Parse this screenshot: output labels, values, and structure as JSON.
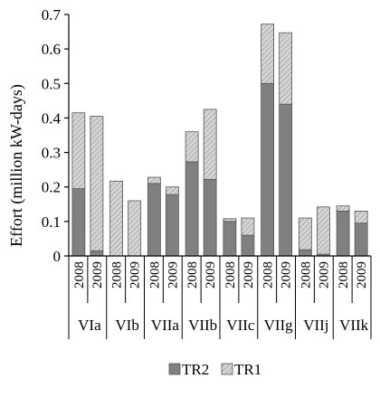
{
  "chart_data": {
    "type": "bar",
    "stacked": true,
    "ylabel": "Effort (million kW-days)",
    "ylim": [
      0,
      0.7
    ],
    "yticks": [
      0,
      0.1,
      0.2,
      0.3,
      0.4,
      0.5,
      0.6,
      0.7
    ],
    "ytick_labels": [
      "0",
      "0.1",
      "0.2",
      "0.3",
      "0.4",
      "0.5",
      "0.6",
      "0.7"
    ],
    "groups": [
      {
        "name": "VIa",
        "years": [
          "2008",
          "2009"
        ]
      },
      {
        "name": "VIb",
        "years": [
          "2008",
          "2009"
        ]
      },
      {
        "name": "VIIa",
        "years": [
          "2008",
          "2009"
        ]
      },
      {
        "name": "VIIb",
        "years": [
          "2008",
          "2009"
        ]
      },
      {
        "name": "VIIc",
        "years": [
          "2008",
          "2009"
        ]
      },
      {
        "name": "VIIg",
        "years": [
          "2008",
          "2009"
        ]
      },
      {
        "name": "VIIj",
        "years": [
          "2008",
          "2009"
        ]
      },
      {
        "name": "VIIk",
        "years": [
          "2008",
          "2009"
        ]
      }
    ],
    "series": [
      {
        "name": "TR2",
        "color": "#808080",
        "values": [
          0.195,
          0.015,
          0.0,
          0.0,
          0.21,
          0.178,
          0.273,
          0.222,
          0.1,
          0.06,
          0.5,
          0.44,
          0.018,
          0.005,
          0.13,
          0.095
        ]
      },
      {
        "name": "TR1",
        "color": "#d4d4d4",
        "values": [
          0.22,
          0.39,
          0.217,
          0.16,
          0.018,
          0.022,
          0.087,
          0.203,
          0.008,
          0.05,
          0.172,
          0.207,
          0.092,
          0.137,
          0.015,
          0.035
        ]
      }
    ],
    "legend_position": "bottom",
    "grid": false
  }
}
